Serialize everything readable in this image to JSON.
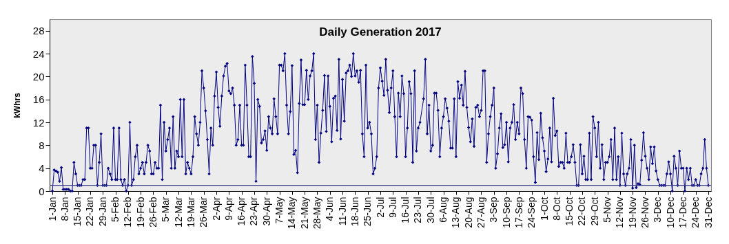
{
  "chart_data": {
    "type": "line",
    "title": "Daily Generation 2017",
    "ylabel": "kWhrs",
    "color": "#000080",
    "marker": "diamond",
    "line_style": "solid",
    "grid": false,
    "ylim": [
      0,
      30
    ],
    "yticks": [
      0,
      4,
      8,
      12,
      16,
      20,
      24,
      28
    ],
    "xlim": [
      "--01-01",
      "--12-31"
    ],
    "xticks": [
      {
        "value": "--01-01",
        "label": "1-Jan"
      },
      {
        "value": "--01-08",
        "label": "8-Jan"
      },
      {
        "value": "--01-15",
        "label": "15-Jan"
      },
      {
        "value": "--01-22",
        "label": "22-Jan"
      },
      {
        "value": "--01-29",
        "label": "29-Jan"
      },
      {
        "value": "--02-05",
        "label": "5-Feb"
      },
      {
        "value": "--02-12",
        "label": "12-Feb"
      },
      {
        "value": "--02-19",
        "label": "19-Feb"
      },
      {
        "value": "--02-26",
        "label": "26-Feb"
      },
      {
        "value": "--03-05",
        "label": "5-Mar"
      },
      {
        "value": "--03-12",
        "label": "12-Mar"
      },
      {
        "value": "--03-19",
        "label": "19-Mar"
      },
      {
        "value": "--03-26",
        "label": "26-Mar"
      },
      {
        "value": "--04-02",
        "label": "2-Apr"
      },
      {
        "value": "--04-09",
        "label": "9-Apr"
      },
      {
        "value": "--04-16",
        "label": "16-Apr"
      },
      {
        "value": "--04-23",
        "label": "23-Apr"
      },
      {
        "value": "--04-30",
        "label": "30-Apr"
      },
      {
        "value": "--05-07",
        "label": "7-May"
      },
      {
        "value": "--05-14",
        "label": "14-May"
      },
      {
        "value": "--05-21",
        "label": "21-May"
      },
      {
        "value": "--05-28",
        "label": "28-May"
      },
      {
        "value": "--06-04",
        "label": "4-Jun"
      },
      {
        "value": "--06-11",
        "label": "11-Jun"
      },
      {
        "value": "--06-18",
        "label": "18-Jun"
      },
      {
        "value": "--06-25",
        "label": "25-Jun"
      },
      {
        "value": "--07-02",
        "label": "2-Jul"
      },
      {
        "value": "--07-09",
        "label": "9-Jul"
      },
      {
        "value": "--07-16",
        "label": "16-Jul"
      },
      {
        "value": "--07-23",
        "label": "23-Jul"
      },
      {
        "value": "--07-30",
        "label": "30-Jul"
      },
      {
        "value": "--08-06",
        "label": "6-Aug"
      },
      {
        "value": "--08-13",
        "label": "13-Aug"
      },
      {
        "value": "--08-20",
        "label": "20-Aug"
      },
      {
        "value": "--08-27",
        "label": "27-Aug"
      },
      {
        "value": "--09-03",
        "label": "3-Sep"
      },
      {
        "value": "--09-10",
        "label": "10-Sep"
      },
      {
        "value": "--09-17",
        "label": "17-Sep"
      },
      {
        "value": "--09-24",
        "label": "24-Sep"
      },
      {
        "value": "--10-01",
        "label": "1-Oct"
      },
      {
        "value": "--10-08",
        "label": "8-Oct"
      },
      {
        "value": "--10-15",
        "label": "15-Oct"
      },
      {
        "value": "--10-22",
        "label": "22-Oct"
      },
      {
        "value": "--10-29",
        "label": "29-Oct"
      },
      {
        "value": "--11-05",
        "label": "5-Nov"
      },
      {
        "value": "--11-12",
        "label": "12-Nov"
      },
      {
        "value": "--11-19",
        "label": "19-Nov"
      },
      {
        "value": "--11-26",
        "label": "26-Nov"
      },
      {
        "value": "--12-03",
        "label": "3-Dec"
      },
      {
        "value": "--12-10",
        "label": "10-Dec"
      },
      {
        "value": "--12-17",
        "label": "17-Dec"
      },
      {
        "value": "--12-24",
        "label": "24-Dec"
      },
      {
        "value": "--12-31",
        "label": "31-Dec"
      }
    ],
    "ref_lines": [
      {
        "axis": "y",
        "value": 1,
        "color": "#3c3c8c"
      }
    ],
    "x": [
      "--01-01",
      "--01-02",
      "--01-03",
      "--01-04",
      "--01-05",
      "--01-06",
      "--01-07",
      "--01-08",
      "--01-09",
      "--01-10",
      "--01-11",
      "--01-12",
      "--01-13",
      "--01-14",
      "--01-15",
      "--01-16",
      "--01-17",
      "--01-18",
      "--01-19",
      "--01-20",
      "--01-21",
      "--01-22",
      "--01-23",
      "--01-24",
      "--01-25",
      "--01-26",
      "--01-27",
      "--01-28",
      "--01-29",
      "--01-30",
      "--01-31",
      "--02-01",
      "--02-02",
      "--02-03",
      "--02-04",
      "--02-05",
      "--02-06",
      "--02-07",
      "--02-08",
      "--02-09",
      "--02-10",
      "--02-11",
      "--02-12",
      "--02-13",
      "--02-14",
      "--02-15",
      "--02-16",
      "--02-17",
      "--02-18",
      "--02-19",
      "--02-20",
      "--02-21",
      "--02-22",
      "--02-23",
      "--02-24",
      "--02-25",
      "--02-26",
      "--02-27",
      "--02-28",
      "--03-01",
      "--03-02",
      "--03-03",
      "--03-04",
      "--03-05",
      "--03-06",
      "--03-07",
      "--03-08",
      "--03-09",
      "--03-10",
      "--03-11",
      "--03-12",
      "--03-13",
      "--03-14",
      "--03-15",
      "--03-16",
      "--03-17",
      "--03-18",
      "--03-19",
      "--03-20",
      "--03-21",
      "--03-22",
      "--03-23",
      "--03-24",
      "--03-25",
      "--03-26",
      "--03-27",
      "--03-28",
      "--03-29",
      "--03-30",
      "--03-31",
      "--04-01",
      "--04-02",
      "--04-03",
      "--04-04",
      "--04-05",
      "--04-06",
      "--04-07",
      "--04-08",
      "--04-09",
      "--04-10",
      "--04-11",
      "--04-12",
      "--04-13",
      "--04-14",
      "--04-15",
      "--04-16",
      "--04-17",
      "--04-18",
      "--04-19",
      "--04-20",
      "--04-21",
      "--04-22",
      "--04-23",
      "--04-24",
      "--04-25",
      "--04-26",
      "--04-27",
      "--04-28",
      "--04-29",
      "--04-30",
      "--05-01",
      "--05-02",
      "--05-03",
      "--05-04",
      "--05-05",
      "--05-06",
      "--05-07",
      "--05-08",
      "--05-09",
      "--05-10",
      "--05-11",
      "--05-12",
      "--05-13",
      "--05-14",
      "--05-15",
      "--05-16",
      "--05-17",
      "--05-18",
      "--05-19",
      "--05-20",
      "--05-21",
      "--05-22",
      "--05-23",
      "--05-24",
      "--05-25",
      "--05-26",
      "--05-27",
      "--05-28",
      "--05-29",
      "--05-30",
      "--05-31",
      "--06-01",
      "--06-02",
      "--06-03",
      "--06-04",
      "--06-05",
      "--06-06",
      "--06-07",
      "--06-08",
      "--06-09",
      "--06-10",
      "--06-11",
      "--06-12",
      "--06-13",
      "--06-14",
      "--06-15",
      "--06-16",
      "--06-17",
      "--06-18",
      "--06-19",
      "--06-20",
      "--06-21",
      "--06-22",
      "--06-23",
      "--06-24",
      "--06-25",
      "--06-26",
      "--06-27",
      "--06-28",
      "--06-29",
      "--06-30",
      "--07-01",
      "--07-02",
      "--07-03",
      "--07-04",
      "--07-05",
      "--07-06",
      "--07-07",
      "--07-08",
      "--07-09",
      "--07-10",
      "--07-11",
      "--07-12",
      "--07-13",
      "--07-14",
      "--07-15",
      "--07-16",
      "--07-17",
      "--07-18",
      "--07-19",
      "--07-20",
      "--07-21",
      "--07-22",
      "--07-23",
      "--07-24",
      "--07-26",
      "--07-27",
      "--07-28",
      "--07-29",
      "--07-30",
      "--07-31",
      "--08-01",
      "--08-02",
      "--08-03",
      "--08-04",
      "--08-05",
      "--08-06",
      "--08-07",
      "--08-08",
      "--08-09",
      "--08-10",
      "--08-11",
      "--08-12",
      "--08-13",
      "--08-14",
      "--08-15",
      "--08-16",
      "--08-17",
      "--08-18",
      "--08-19",
      "--08-20",
      "--08-21",
      "--08-22",
      "--08-23",
      "--08-24",
      "--08-25",
      "--08-26",
      "--08-27",
      "--08-28",
      "--08-29",
      "--08-30",
      "--08-31",
      "--09-01",
      "--09-02",
      "--09-03",
      "--09-04",
      "--09-05",
      "--09-06",
      "--09-07",
      "--09-08",
      "--09-09",
      "--09-10",
      "--09-11",
      "--09-12",
      "--09-13",
      "--09-14",
      "--09-15",
      "--09-16",
      "--09-17",
      "--09-18",
      "--09-19",
      "--09-20",
      "--09-21",
      "--09-22",
      "--09-23",
      "--09-24",
      "--09-25",
      "--09-26",
      "--09-27",
      "--09-28",
      "--09-29",
      "--09-30",
      "--10-01",
      "--10-02",
      "--10-03",
      "--10-04",
      "--10-05",
      "--10-06",
      "--10-07",
      "--10-08",
      "--10-09",
      "--10-10",
      "--10-11",
      "--10-12",
      "--10-13",
      "--10-14",
      "--10-15",
      "--10-16",
      "--10-17",
      "--10-18",
      "--10-19",
      "--10-20",
      "--10-21",
      "--10-22",
      "--10-23",
      "--10-24",
      "--10-25",
      "--10-26",
      "--10-27",
      "--10-28",
      "--10-29",
      "--10-30",
      "--10-31",
      "--11-01",
      "--11-02",
      "--11-03",
      "--11-04",
      "--11-05",
      "--11-06",
      "--11-07",
      "--11-08",
      "--11-09",
      "--11-10",
      "--11-11",
      "--11-12",
      "--11-13",
      "--11-14",
      "--11-15",
      "--11-16",
      "--11-17",
      "--11-18",
      "--11-19",
      "--11-20",
      "--11-21",
      "--11-22",
      "--11-23",
      "--11-24",
      "--11-25",
      "--11-26",
      "--11-27",
      "--11-28",
      "--11-29",
      "--11-30",
      "--12-01",
      "--12-02",
      "--12-03",
      "--12-04",
      "--12-05",
      "--12-06",
      "--12-07",
      "--12-08",
      "--12-09",
      "--12-10",
      "--12-11",
      "--12-12",
      "--12-13",
      "--12-14",
      "--12-15",
      "--12-16",
      "--12-17",
      "--12-18",
      "--12-19",
      "--12-20",
      "--12-21",
      "--12-22",
      "--12-23",
      "--12-24",
      "--12-25",
      "--12-26",
      "--12-27",
      "--12-28",
      "--12-29",
      "--12-30",
      "--12-31"
    ],
    "values": [
      0,
      3.7,
      3.5,
      3.3,
      1.7,
      4.1,
      0.3,
      0.3,
      0.3,
      0.3,
      0,
      0,
      5,
      3,
      1,
      1,
      1,
      2,
      2,
      11,
      11,
      4,
      4,
      8,
      8,
      1,
      5,
      10,
      1,
      1,
      1,
      4,
      3,
      2,
      11,
      2,
      2,
      11,
      2,
      1,
      2,
      0,
      1,
      12,
      1,
      2,
      6,
      8,
      3,
      4,
      5,
      3,
      5,
      8,
      7,
      3,
      3,
      5,
      4,
      4,
      15,
      2,
      12,
      7,
      9,
      11,
      4,
      13,
      4,
      7,
      6,
      16,
      6,
      16,
      3,
      5,
      4,
      3,
      6,
      13,
      10,
      8,
      12,
      21,
      18,
      14,
      9,
      3,
      11,
      8,
      16.6,
      20.8,
      14.6,
      11.3,
      16.6,
      20.1,
      21.8,
      22.3,
      17.5,
      17,
      18,
      15,
      8,
      9,
      15,
      8,
      8,
      22,
      15,
      6,
      6,
      23.5,
      18.8,
      1.7,
      16,
      14.8,
      8.4,
      9,
      10.5,
      7.1,
      13,
      11,
      10,
      16.1,
      13,
      10,
      22,
      22,
      21,
      24,
      15,
      10,
      13.9,
      21.9,
      6.4,
      7.1,
      3.2,
      15.3,
      22.9,
      15.1,
      15.1,
      21.1,
      16,
      20.1,
      21,
      24,
      9,
      15,
      5,
      10.1,
      14.1,
      20.2,
      10.4,
      20.1,
      14.8,
      8.6,
      16.2,
      16.6,
      10.6,
      23,
      9.1,
      19.5,
      12.2,
      20.6,
      21,
      22,
      20,
      24,
      20.1,
      21,
      19,
      21.1,
      10,
      6,
      22,
      11,
      12,
      10,
      3,
      4,
      6,
      18,
      21.5,
      19.2,
      16.7,
      23,
      17.6,
      13.7,
      18,
      21,
      13,
      6,
      17.1,
      13,
      20.1,
      17,
      6,
      11,
      19.1,
      17,
      5,
      21,
      7,
      11,
      12,
      16.1,
      23,
      10,
      15,
      7,
      8,
      17.1,
      17.1,
      14.1,
      6,
      11,
      13,
      16.1,
      14.5,
      12.2,
      7.5,
      7.5,
      16.1,
      6,
      19.1,
      16.2,
      18.5,
      15,
      20.9,
      14.6,
      11.1,
      8.6,
      12.6,
      7.8,
      14.6,
      15,
      13,
      14.1,
      21,
      21,
      5,
      10,
      13,
      15,
      18,
      4,
      6.5,
      11,
      13.5,
      7.6,
      8.1,
      12,
      5.1,
      11,
      12,
      15.1,
      9,
      12,
      10,
      18,
      17,
      9,
      4,
      13,
      12.9,
      12.4,
      6,
      1.5,
      10.2,
      5.5,
      13.6,
      9.3,
      7,
      3.4,
      5.6,
      11,
      5.1,
      16.2,
      9.7,
      10.5,
      4.3,
      5,
      5,
      4,
      10.1,
      5,
      5,
      6,
      8.1,
      5,
      1,
      1,
      8.1,
      3,
      6.1,
      2,
      2,
      10.1,
      2,
      13,
      11,
      6,
      12,
      4,
      8.1,
      2,
      5,
      5,
      6,
      9,
      2,
      11,
      2,
      6,
      1,
      10.1,
      3,
      1,
      3,
      4,
      9,
      0.5,
      8,
      0.6,
      1.3,
      1.1,
      5.4,
      10.2,
      6.1,
      4,
      2,
      7.7,
      4.8,
      7.7,
      3.5,
      2,
      1,
      1,
      1,
      1,
      3,
      5.1,
      3,
      0,
      6.1,
      4,
      1,
      7,
      4,
      4,
      0,
      4,
      2,
      4,
      1,
      1,
      2,
      1,
      1,
      3,
      4,
      9,
      4,
      1
    ]
  }
}
